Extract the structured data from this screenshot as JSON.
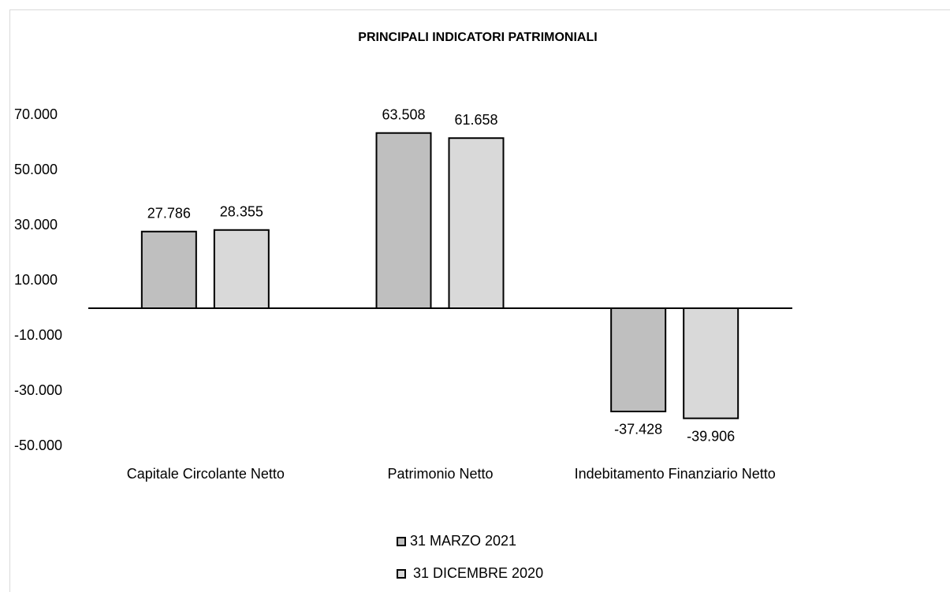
{
  "chart_data": {
    "type": "bar",
    "title": "PRINCIPALI INDICATORI PATRIMONIALI",
    "categories": [
      "Capitale Circolante Netto",
      "Patrimonio Netto",
      "Indebitamento Finanziario Netto"
    ],
    "series": [
      {
        "name": "31 MARZO 2021",
        "color": "#bfbfbf",
        "values": [
          27786,
          63508,
          -37428
        ],
        "value_labels": [
          "27.786",
          "63.508",
          "-37.428"
        ]
      },
      {
        "name": "31 DICEMBRE 2020",
        "color": "#d9d9d9",
        "values": [
          28355,
          61658,
          -39906
        ],
        "value_labels": [
          "28.355",
          "61.658",
          "-39.906"
        ]
      }
    ],
    "ylim": [
      -50000,
      70000
    ],
    "yticks": [
      {
        "value": 70000,
        "label": "70.000"
      },
      {
        "value": 50000,
        "label": "50.000"
      },
      {
        "value": 30000,
        "label": "30.000"
      },
      {
        "value": 10000,
        "label": "10.000"
      },
      {
        "value": -10000,
        "label": "-10.000"
      },
      {
        "value": -30000,
        "label": "-30.000"
      },
      {
        "value": -50000,
        "label": "-50.000"
      }
    ],
    "grid": false,
    "legend": "bottom"
  }
}
